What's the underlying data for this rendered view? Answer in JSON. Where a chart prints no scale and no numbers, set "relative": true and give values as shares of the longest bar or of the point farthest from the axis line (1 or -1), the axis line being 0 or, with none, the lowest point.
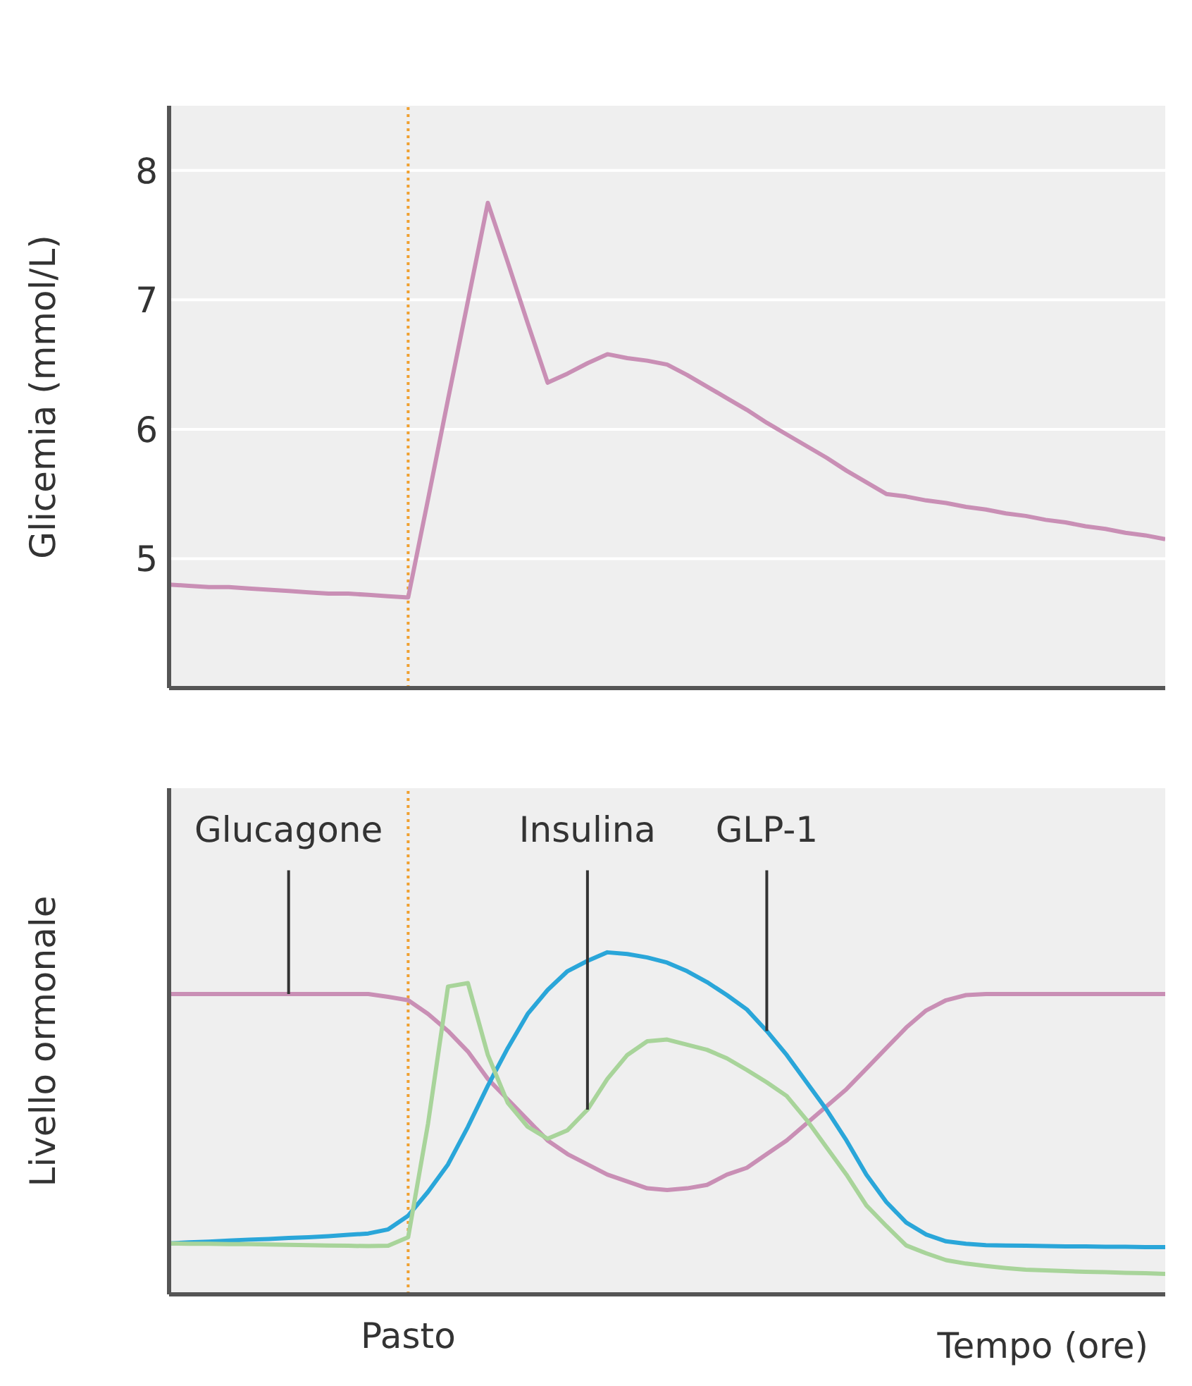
{
  "chart_data": [
    {
      "type": "line",
      "ylabel": "Glicemia (mmol/L)",
      "categories": [
        null,
        null,
        null,
        null,
        null,
        null,
        null,
        null,
        null,
        null,
        null,
        null,
        null,
        null,
        null,
        null,
        null,
        null,
        null,
        null,
        null,
        null,
        null,
        null,
        null,
        null,
        null,
        null,
        null,
        null,
        null,
        null,
        null,
        null,
        null,
        null,
        null,
        null,
        null,
        null,
        null,
        null,
        null,
        null,
        null,
        null,
        null,
        null,
        null,
        null,
        null
      ],
      "ylim": [
        4,
        8.5
      ],
      "yticks": [
        5,
        6,
        7,
        8
      ],
      "grid": "y",
      "tick_labels": "y",
      "marker": "none",
      "line_style": "solid",
      "series": [
        {
          "color": "#c98fb5",
          "values": [
            4.8,
            4.79,
            4.78,
            4.78,
            4.77,
            4.76,
            4.75,
            4.74,
            4.73,
            4.73,
            4.72,
            4.71,
            4.7,
            5.46,
            6.23,
            6.99,
            7.75,
            7.29,
            6.82,
            6.36,
            6.43,
            6.51,
            6.58,
            6.55,
            6.53,
            6.5,
            6.42,
            6.33,
            6.24,
            6.15,
            6.05,
            5.96,
            5.87,
            5.78,
            5.68,
            5.59,
            5.5,
            5.48,
            5.45,
            5.43,
            5.4,
            5.38,
            5.35,
            5.33,
            5.3,
            5.28,
            5.25,
            5.23,
            5.2,
            5.18,
            5.15
          ]
        }
      ]
    },
    {
      "type": "line",
      "relative": true,
      "ylabel": "Livello ormonale",
      "xlabel": "Tempo (ore)",
      "categories": [
        null,
        null,
        null,
        null,
        null,
        null,
        null,
        null,
        null,
        null,
        null,
        null,
        null,
        null,
        null,
        null,
        null,
        null,
        null,
        null,
        null,
        null,
        null,
        null,
        null,
        null,
        null,
        null,
        null,
        null,
        null,
        null,
        null,
        null,
        null,
        null,
        null,
        null,
        null,
        null,
        null,
        null,
        null,
        null,
        null,
        null,
        null,
        null,
        null,
        null,
        null
      ],
      "grid": false,
      "tick_labels": false,
      "marker": "none",
      "line_style": "solid",
      "series": [
        {
          "name": "Glucagone",
          "color": "#c98fb5",
          "values": [
            0.878,
            0.878,
            0.878,
            0.878,
            0.878,
            0.878,
            0.878,
            0.878,
            0.878,
            0.878,
            0.878,
            0.87,
            0.86,
            0.82,
            0.77,
            0.71,
            0.63,
            0.57,
            0.51,
            0.45,
            0.41,
            0.38,
            0.35,
            0.33,
            0.31,
            0.305,
            0.31,
            0.32,
            0.35,
            0.37,
            0.41,
            0.45,
            0.5,
            0.55,
            0.6,
            0.66,
            0.72,
            0.78,
            0.83,
            0.86,
            0.875,
            0.878,
            0.878,
            0.878,
            0.878,
            0.878,
            0.878,
            0.878,
            0.878,
            0.878,
            0.878
          ]
        },
        {
          "name": "GLP-1",
          "color": "#2aa6d9",
          "values": [
            0.149,
            0.152,
            0.154,
            0.157,
            0.16,
            0.162,
            0.165,
            0.167,
            0.17,
            0.174,
            0.178,
            0.19,
            0.23,
            0.3,
            0.38,
            0.49,
            0.61,
            0.72,
            0.82,
            0.89,
            0.945,
            0.975,
            1,
            0.995,
            0.985,
            0.97,
            0.945,
            0.913,
            0.875,
            0.833,
            0.77,
            0.7,
            0.62,
            0.54,
            0.45,
            0.35,
            0.27,
            0.21,
            0.175,
            0.155,
            0.148,
            0.144,
            0.143,
            0.142,
            0.141,
            0.14,
            0.14,
            0.139,
            0.139,
            0.138,
            0.138
          ]
        },
        {
          "name": "Insulina",
          "color": "#a8d49a",
          "values": [
            0.149,
            0.148,
            0.148,
            0.147,
            0.147,
            0.146,
            0.145,
            0.144,
            0.143,
            0.142,
            0.141,
            0.142,
            0.167,
            0.5,
            0.9,
            0.91,
            0.7,
            0.56,
            0.49,
            0.455,
            0.48,
            0.54,
            0.63,
            0.7,
            0.74,
            0.745,
            0.73,
            0.715,
            0.69,
            0.656,
            0.62,
            0.58,
            0.51,
            0.43,
            0.35,
            0.26,
            0.2,
            0.143,
            0.12,
            0.1,
            0.09,
            0.083,
            0.077,
            0.072,
            0.07,
            0.068,
            0.066,
            0.065,
            0.063,
            0.062,
            0.06
          ]
        }
      ],
      "annotations": [
        "Pasto"
      ]
    }
  ]
}
